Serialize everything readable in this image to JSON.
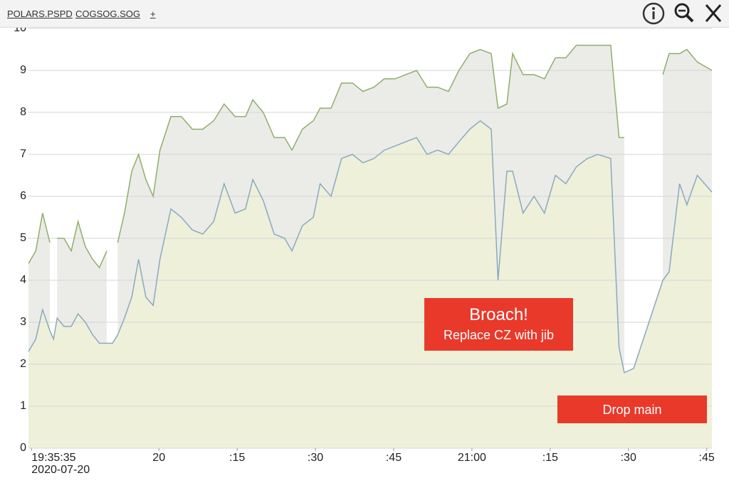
{
  "add_tab_label": "+",
  "chart_data": {
    "type": "area",
    "x_date": "2020-07-20",
    "x": [
      1175.0,
      1176.4,
      1177.7,
      1179.1,
      1179.8,
      1180.5,
      1181.8,
      1183.2,
      1184.5,
      1185.9,
      1187.3,
      1188.6,
      1190.0,
      1191.1,
      1192.1,
      1193.4,
      1194.8,
      1196.1,
      1197.5,
      1198.9,
      1200.2,
      1202.3,
      1204.3,
      1206.4,
      1208.4,
      1210.5,
      1212.5,
      1214.6,
      1216.6,
      1218.0,
      1220.0,
      1222.1,
      1224.1,
      1225.5,
      1227.5,
      1229.6,
      1230.9,
      1233.0,
      1235.0,
      1237.1,
      1239.1,
      1241.2,
      1243.2,
      1245.3,
      1247.3,
      1249.4,
      1251.4,
      1253.4,
      1255.5,
      1257.5,
      1259.6,
      1261.6,
      1263.7,
      1265.0,
      1266.7,
      1267.8,
      1269.8,
      1271.9,
      1273.9,
      1276.0,
      1278.0,
      1280.0,
      1282.1,
      1284.1,
      1286.6,
      1288.2,
      1289.2,
      1291.0,
      1296.6,
      1297.8,
      1299.8,
      1301.2,
      1303.2,
      1306.0
    ],
    "series": [
      {
        "name": "POLARS.PSPD",
        "color": "#8fae6a",
        "fill": "#ebece8",
        "values": [
          4.4,
          4.7,
          5.6,
          4.9,
          null,
          5.0,
          5.0,
          4.7,
          5.4,
          4.8,
          4.5,
          4.3,
          4.7,
          null,
          4.9,
          5.6,
          6.6,
          7.0,
          6.4,
          6.0,
          7.1,
          7.9,
          7.9,
          7.6,
          7.6,
          7.8,
          8.2,
          7.9,
          7.9,
          8.3,
          8.0,
          7.4,
          7.4,
          7.1,
          7.6,
          7.8,
          8.1,
          8.1,
          8.7,
          8.7,
          8.5,
          8.6,
          8.8,
          8.8,
          8.9,
          9.0,
          8.6,
          8.6,
          8.5,
          9.0,
          9.4,
          9.5,
          9.4,
          8.1,
          8.2,
          9.4,
          8.9,
          8.9,
          8.8,
          9.3,
          9.3,
          9.6,
          9.6,
          9.6,
          9.6,
          7.4,
          7.4,
          null,
          8.9,
          9.4,
          9.4,
          9.5,
          9.2,
          9.0
        ]
      },
      {
        "name": "COGSOG.SOG",
        "color": "#8aa9bf",
        "fill": "#eef0da",
        "values": [
          2.3,
          2.6,
          3.3,
          2.8,
          2.6,
          3.1,
          2.9,
          2.9,
          3.2,
          3.0,
          2.7,
          2.5,
          2.5,
          2.5,
          2.7,
          3.1,
          3.6,
          4.5,
          3.6,
          3.4,
          4.5,
          5.7,
          5.5,
          5.2,
          5.1,
          5.4,
          6.3,
          5.6,
          5.7,
          6.4,
          5.9,
          5.1,
          5.0,
          4.7,
          5.3,
          5.5,
          6.3,
          6.0,
          6.9,
          7.0,
          6.8,
          6.9,
          7.1,
          7.2,
          7.3,
          7.4,
          7.0,
          7.1,
          7.0,
          7.3,
          7.6,
          7.8,
          7.6,
          4.0,
          6.6,
          6.6,
          5.6,
          6.0,
          5.6,
          6.5,
          6.3,
          6.7,
          6.9,
          7.0,
          6.9,
          2.4,
          1.8,
          1.9,
          4.0,
          4.2,
          6.3,
          5.8,
          6.5,
          6.1
        ]
      }
    ],
    "xlim": [
      1175,
      1306
    ],
    "xticks": [
      {
        "value": 1175.583,
        "label": "19:35:35"
      },
      {
        "value": 1200,
        "label": "20"
      },
      {
        "value": 1215,
        "label": ":15"
      },
      {
        "value": 1230,
        "label": ":30"
      },
      {
        "value": 1245,
        "label": ":45"
      },
      {
        "value": 1260,
        "label": "21:00"
      },
      {
        "value": 1275,
        "label": ":15"
      },
      {
        "value": 1290,
        "label": ":30"
      },
      {
        "value": 1305,
        "label": ":45"
      }
    ],
    "ylim": [
      0,
      10
    ],
    "yticks": [
      0,
      1,
      2,
      3,
      4,
      5,
      6,
      7,
      8,
      9,
      10
    ],
    "grid": true,
    "annotations": [
      {
        "text": "Broach!",
        "subtext": "Replace CZ with jib"
      },
      {
        "text": "Drop main"
      }
    ]
  }
}
